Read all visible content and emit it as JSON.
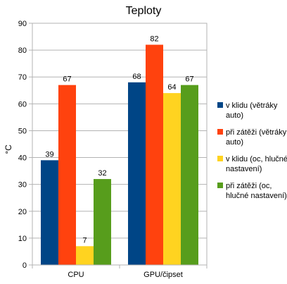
{
  "chart_data": {
    "type": "bar",
    "title": "Teploty",
    "xlabel": "",
    "ylabel": "°C",
    "ylim": [
      0,
      90
    ],
    "yticks": [
      0,
      10,
      20,
      30,
      40,
      50,
      60,
      70,
      80,
      90
    ],
    "grid": true,
    "legend_position": "right",
    "categories": [
      "CPU",
      "GPU/čipset"
    ],
    "series": [
      {
        "name": "v klidu (větráky auto)",
        "legend_lines": [
          "v klidu (větráky",
          "auto)"
        ],
        "color": "#004586",
        "values": [
          39,
          68
        ]
      },
      {
        "name": "při zátěži (větráky auto)",
        "legend_lines": [
          "při zátěži (větráky",
          "auto)"
        ],
        "color": "#ff420e",
        "values": [
          67,
          82
        ]
      },
      {
        "name": "v klidu (oc, hlučné nastavení)",
        "legend_lines": [
          "v klidu (oc, hlučné",
          "nastavení)"
        ],
        "color": "#ffd320",
        "values": [
          7,
          64
        ]
      },
      {
        "name": "při zátěži (oc, hlučné nastavení)",
        "legend_lines": [
          "při zátěži (oc,",
          "hlučné nastavení)"
        ],
        "color": "#579d1c",
        "values": [
          32,
          67
        ]
      }
    ]
  }
}
